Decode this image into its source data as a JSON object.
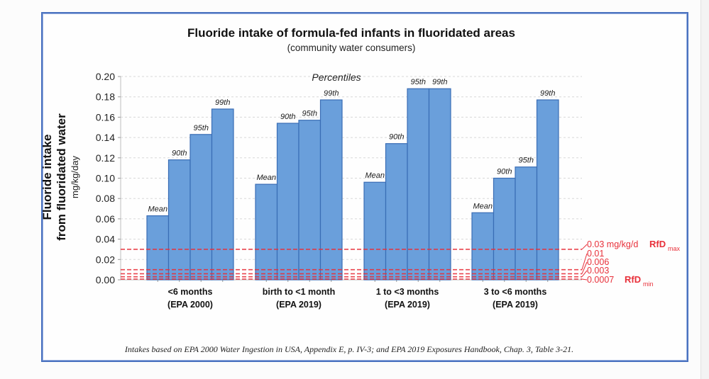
{
  "chart_data": {
    "type": "bar",
    "title": "Fluoride intake of formula-fed infants in fluoridated areas",
    "subtitle": "(community water consumers)",
    "ylabel_line1": "Fluoride intake",
    "ylabel_line2": "from fluoridated water",
    "ylabel_units": "mg/kg/day",
    "ylim": [
      0,
      0.2
    ],
    "yticks": [
      "0.00",
      "0.02",
      "0.04",
      "0.06",
      "0.08",
      "0.10",
      "0.12",
      "0.14",
      "0.16",
      "0.18",
      "0.20"
    ],
    "grid": true,
    "percentiles_label": "Percentiles",
    "categories": [
      {
        "line1": "<6 months",
        "line2": "(EPA 2000)"
      },
      {
        "line1": "birth to <1 month",
        "line2": "(EPA 2019)"
      },
      {
        "line1": "1 to <3 months",
        "line2": "(EPA 2019)"
      },
      {
        "line1": "3 to <6 months",
        "line2": "(EPA 2019)"
      }
    ],
    "series": [
      {
        "name": "Mean",
        "values": [
          0.063,
          0.094,
          0.096,
          0.066
        ]
      },
      {
        "name": "90th",
        "values": [
          0.118,
          0.154,
          0.134,
          0.1
        ]
      },
      {
        "name": "95th",
        "values": [
          0.143,
          0.157,
          0.188,
          0.111
        ]
      },
      {
        "name": "99th",
        "values": [
          0.168,
          0.177,
          0.188,
          0.177
        ]
      }
    ],
    "bar_color": "#6a9fdb",
    "bar_edge_color": "#3a6db5",
    "reference_lines": [
      {
        "value": 0.03,
        "label": "0.03 mg/kg/d",
        "tag": "RfD",
        "tag_sub": "max"
      },
      {
        "value": 0.01,
        "label": "0.01"
      },
      {
        "value": 0.006,
        "label": "0.006"
      },
      {
        "value": 0.003,
        "label": "0.003"
      },
      {
        "value": 0.0007,
        "label": "0.0007",
        "tag": "RfD",
        "tag_sub": "min"
      }
    ],
    "reference_color": "#e8303a",
    "footnote": "Intakes based on EPA 2000 Water Ingestion in USA, Appendix E, p. IV-3; and EPA 2019 Exposures Handbook, Chap. 3, Table 3-21."
  }
}
